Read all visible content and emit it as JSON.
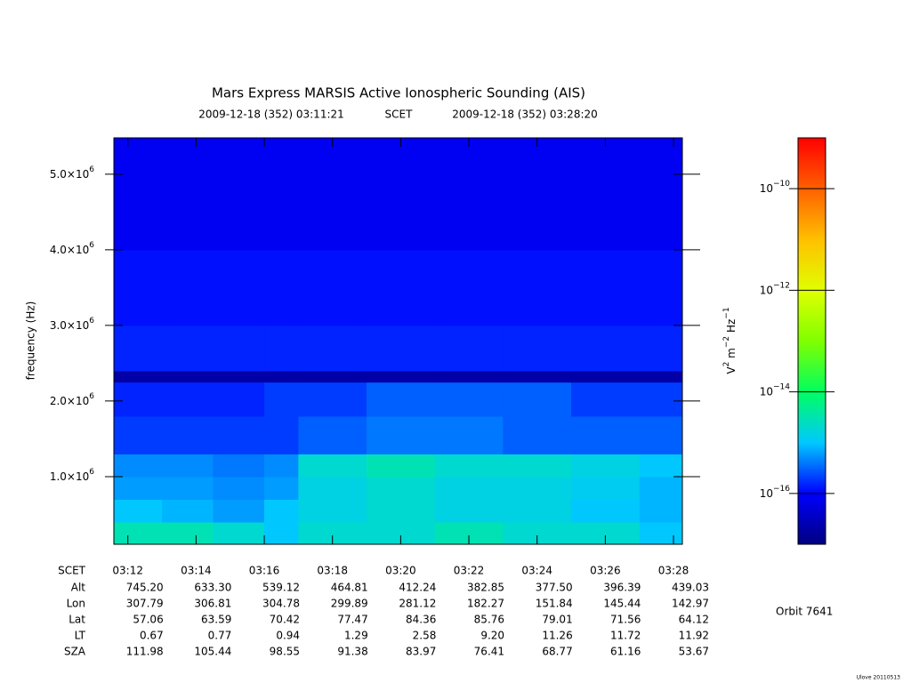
{
  "chart_data": {
    "type": "heatmap",
    "title": "Mars Express MARSIS Active Ionospheric Sounding (AIS)",
    "start_time": "2009-12-18 (352) 03:11:21",
    "time_system": "SCET",
    "end_time": "2009-12-18 (352) 03:28:20",
    "ylabel": "frequency (Hz)",
    "xlim": [
      11.59,
      28.26
    ],
    "xticks": [
      {
        "value": 12,
        "label": "03:12"
      },
      {
        "value": 14,
        "label": "03:14"
      },
      {
        "value": 16,
        "label": "03:16"
      },
      {
        "value": 18,
        "label": "03:18"
      },
      {
        "value": 20,
        "label": "03:20"
      },
      {
        "value": 22,
        "label": "03:22"
      },
      {
        "value": 24,
        "label": "03:24"
      },
      {
        "value": 26,
        "label": "03:26"
      },
      {
        "value": 28,
        "label": "03:28"
      }
    ],
    "ylim": [
      106000,
      5480000
    ],
    "yticks": [
      {
        "value": 1000000,
        "label": [
          "1.0×10",
          "6"
        ]
      },
      {
        "value": 2000000,
        "label": [
          "2.0×10",
          "6"
        ]
      },
      {
        "value": 3000000,
        "label": [
          "3.0×10",
          "6"
        ]
      },
      {
        "value": 4000000,
        "label": [
          "4.0×10",
          "6"
        ]
      },
      {
        "value": 5000000,
        "label": [
          "5.0×10",
          "6"
        ]
      }
    ],
    "xbins": [
      11.59,
      13,
      14.5,
      16,
      17,
      19,
      21,
      23,
      25,
      27,
      28.26
    ],
    "ybins": [
      106000,
      400000,
      700000,
      1000000,
      1300000,
      1800000,
      2250000,
      2400000,
      3000000,
      4000000,
      5480000
    ],
    "z": [
      [
        3e-15,
        3e-15,
        2e-15,
        1e-15,
        2e-15,
        2e-15,
        3e-15,
        2e-15,
        2e-15,
        1e-15
      ],
      [
        1e-15,
        8e-16,
        6e-16,
        1e-15,
        1.5e-15,
        2e-15,
        1.5e-15,
        1.5e-15,
        1e-15,
        8e-16
      ],
      [
        6e-16,
        6e-16,
        5e-16,
        6e-16,
        1.5e-15,
        2e-15,
        1.5e-15,
        1.5e-15,
        1.2e-15,
        8e-16
      ],
      [
        5e-16,
        5e-16,
        4e-16,
        5e-16,
        2e-15,
        3e-15,
        2e-15,
        2e-15,
        1.5e-15,
        1e-15
      ],
      [
        2e-16,
        2e-16,
        2e-16,
        2e-16,
        3e-16,
        4e-16,
        4e-16,
        3e-16,
        3e-16,
        3e-16
      ],
      [
        1.5e-16,
        1.5e-16,
        1.5e-16,
        2e-16,
        2e-16,
        3e-16,
        3e-16,
        3e-16,
        2e-16,
        2e-16
      ],
      [
        2e-17,
        2e-17,
        2e-17,
        2e-17,
        2e-17,
        2e-17,
        2e-17,
        2e-17,
        2e-17,
        2e-17
      ],
      [
        1.5e-16,
        1.5e-16,
        1.5e-16,
        1.5e-16,
        1.5e-16,
        1.5e-16,
        1.5e-16,
        1.5e-16,
        1.5e-16,
        1.5e-16
      ],
      [
        1.2e-16,
        1.2e-16,
        1.2e-16,
        1.2e-16,
        1.2e-16,
        1.2e-16,
        1.2e-16,
        1.2e-16,
        1.2e-16,
        1.2e-16
      ],
      [
        8e-17,
        8e-17,
        8e-17,
        8e-17,
        8e-17,
        8e-17,
        8e-17,
        8e-17,
        8e-17,
        8e-17
      ]
    ],
    "clim": [
      1e-17,
      1e-09
    ],
    "color_scale": "log",
    "colormap": [
      "#00007f",
      "#0000ff",
      "#00c8ff",
      "#00ff60",
      "#80ff00",
      "#e0ff00",
      "#ffc000",
      "#ff6000",
      "#ff0000"
    ],
    "cticks": [
      {
        "value": 1e-16,
        "label": [
          "10",
          "−16"
        ]
      },
      {
        "value": 1e-14,
        "label": [
          "10",
          "−14"
        ]
      },
      {
        "value": 1e-12,
        "label": [
          "10",
          "−12"
        ]
      },
      {
        "value": 1e-10,
        "label": [
          "10",
          "−10"
        ]
      }
    ],
    "colorbar_label": [
      "V",
      "2",
      " m",
      "−2",
      " Hz",
      "−1"
    ],
    "ephemeris": {
      "time_label": "SCET",
      "rows": [
        {
          "label": "Alt",
          "values": [
            "745.20",
            "633.30",
            "539.12",
            "464.81",
            "412.24",
            "382.85",
            "377.50",
            "396.39",
            "439.03"
          ]
        },
        {
          "label": "Lon",
          "values": [
            "307.79",
            "306.81",
            "304.78",
            "299.89",
            "281.12",
            "182.27",
            "151.84",
            "145.44",
            "142.97"
          ]
        },
        {
          "label": "Lat",
          "values": [
            "57.06",
            "63.59",
            "70.42",
            "77.47",
            "84.36",
            "85.76",
            "79.01",
            "71.56",
            "64.12"
          ]
        },
        {
          "label": "LT",
          "values": [
            "0.67",
            "0.77",
            "0.94",
            "1.29",
            "2.58",
            "9.20",
            "11.26",
            "11.72",
            "11.92"
          ]
        },
        {
          "label": "SZA",
          "values": [
            "111.98",
            "105.44",
            "98.55",
            "91.38",
            "83.97",
            "76.41",
            "68.77",
            "61.16",
            "53.67"
          ]
        }
      ]
    },
    "orbit": "Orbit 7641",
    "footer": "Ulove 20110513"
  }
}
